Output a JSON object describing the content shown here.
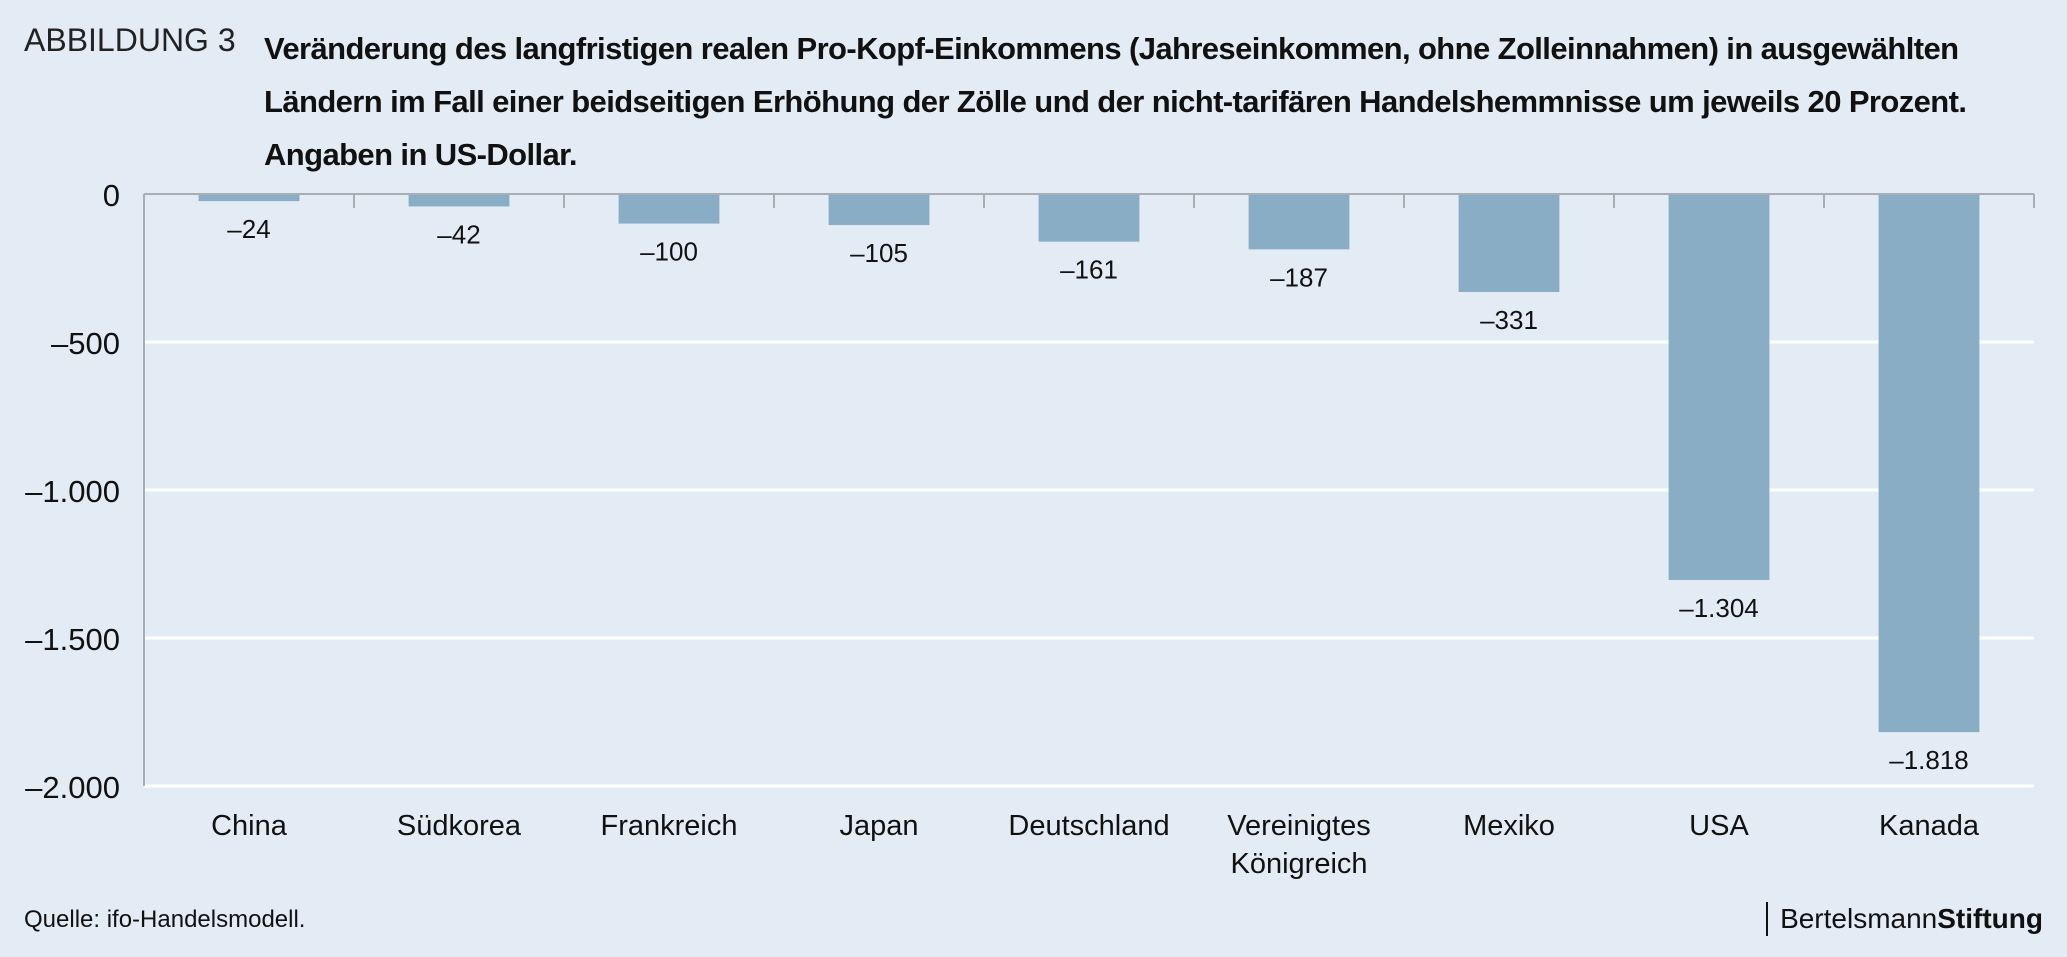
{
  "header": {
    "figure_label": "ABBILDUNG 3",
    "title": "Veränderung des langfristigen realen Pro-Kopf-Einkommens (Jahreseinkommen, ohne Zolleinnahmen) in ausgewählten Ländern im Fall einer beidseitigen Erhöhung der Zölle und der nicht-tarifären Handelshemmnisse um jeweils 20 Prozent. Angaben in US-Dollar."
  },
  "footer": {
    "source": "Quelle: ifo-Handelsmodell.",
    "brand_regular": "Bertelsmann",
    "brand_bold": "Stiftung"
  },
  "colors": {
    "bar": "#8aadc6",
    "background": "#e3ecf4",
    "gridline": "#ffffff",
    "axis": "#a8aeb3"
  },
  "chart_data": {
    "type": "bar",
    "title": "Veränderung des langfristigen realen Pro-Kopf-Einkommens (Jahreseinkommen, ohne Zolleinnahmen) in ausgewählten Ländern im Fall einer beidseitigen Erhöhung der Zölle und der nicht-tarifären Handelshemmnisse um jeweils 20 Prozent. Angaben in US-Dollar.",
    "categories": [
      [
        "China"
      ],
      [
        "Südkorea"
      ],
      [
        "Frankreich"
      ],
      [
        "Japan"
      ],
      [
        "Deutschland"
      ],
      [
        "Vereinigtes",
        "Königreich"
      ],
      [
        "Mexiko"
      ],
      [
        "USA"
      ],
      [
        "Kanada"
      ]
    ],
    "values": [
      -24,
      -42,
      -100,
      -105,
      -161,
      -187,
      -331,
      -1304,
      -1818
    ],
    "value_labels": [
      "–24",
      "–42",
      "–100",
      "–105",
      "–161",
      "–187",
      "–331",
      "–1.304",
      "–1.818"
    ],
    "xlabel": "",
    "ylabel": "",
    "ylim": [
      -2000,
      0
    ],
    "yticks": [
      0,
      -500,
      -1000,
      -1500,
      -2000
    ],
    "ytick_labels": [
      "0",
      "–500",
      "–1.000",
      "–1.500",
      "–2.000"
    ],
    "grid": true,
    "legend": "none"
  }
}
